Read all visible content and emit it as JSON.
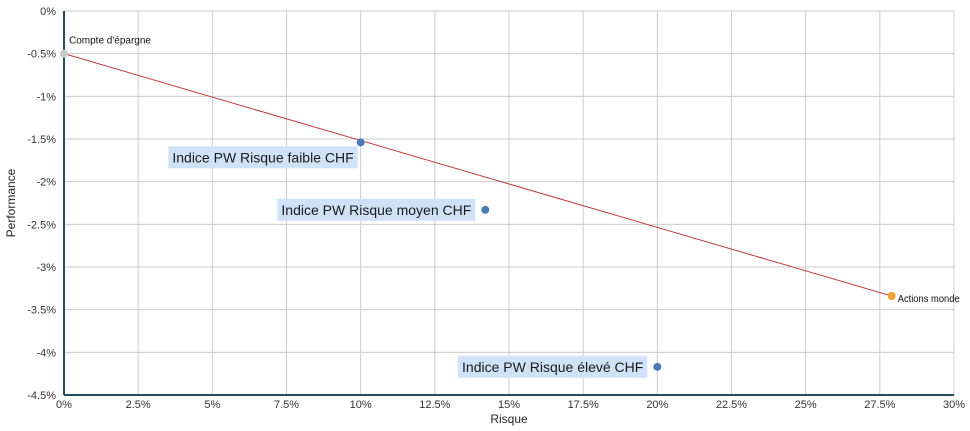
{
  "chart_data": {
    "type": "scatter",
    "title": "",
    "xlabel": "Risque",
    "ylabel": "Performance",
    "xlim": [
      0,
      30
    ],
    "ylim": [
      -4.5,
      0
    ],
    "x_ticks": [
      0,
      2.5,
      5,
      7.5,
      10,
      12.5,
      15,
      17.5,
      20,
      22.5,
      25,
      27.5,
      30
    ],
    "x_tick_labels": [
      "0%",
      "2.5%",
      "5%",
      "7.5%",
      "10%",
      "12.5%",
      "15%",
      "17.5%",
      "20%",
      "22.5%",
      "25%",
      "27.5%",
      "30%"
    ],
    "y_ticks": [
      0,
      -0.5,
      -1,
      -1.5,
      -2,
      -2.5,
      -3,
      -3.5,
      -4,
      -4.5
    ],
    "y_tick_labels": [
      "0%",
      "-0.5%",
      "-1%",
      "-1.5%",
      "-2%",
      "-2.5%",
      "-3%",
      "-3.5%",
      "-4%",
      "-4.5%"
    ],
    "grid": true,
    "points": [
      {
        "label": "Compte d'épargne",
        "x": 0,
        "y": -0.5,
        "color": "#c8c8c8",
        "style": "plain",
        "label_pos": "above-right"
      },
      {
        "label": "Indice PW Risque faible CHF",
        "x": 10,
        "y": -1.54,
        "color": "#4a7ab5",
        "style": "callout",
        "label_pos": "below-left"
      },
      {
        "label": "Indice PW Risque moyen CHF",
        "x": 14.2,
        "y": -2.33,
        "color": "#4a7ab5",
        "style": "callout",
        "label_pos": "left"
      },
      {
        "label": "Indice PW Risque élevé CHF",
        "x": 20,
        "y": -4.17,
        "color": "#4a7ab5",
        "style": "callout",
        "label_pos": "left"
      },
      {
        "label": "Actions monde",
        "x": 27.9,
        "y": -3.34,
        "color": "#f0a030",
        "style": "plain",
        "label_pos": "right"
      }
    ],
    "line": {
      "x": [
        0,
        27.9
      ],
      "y": [
        -0.5,
        -3.34
      ],
      "color": "#c0393b"
    },
    "colors": {
      "axis": "#1f4e5f",
      "grid": "#cccccc",
      "callout_bg": "#cfe2f7"
    }
  }
}
